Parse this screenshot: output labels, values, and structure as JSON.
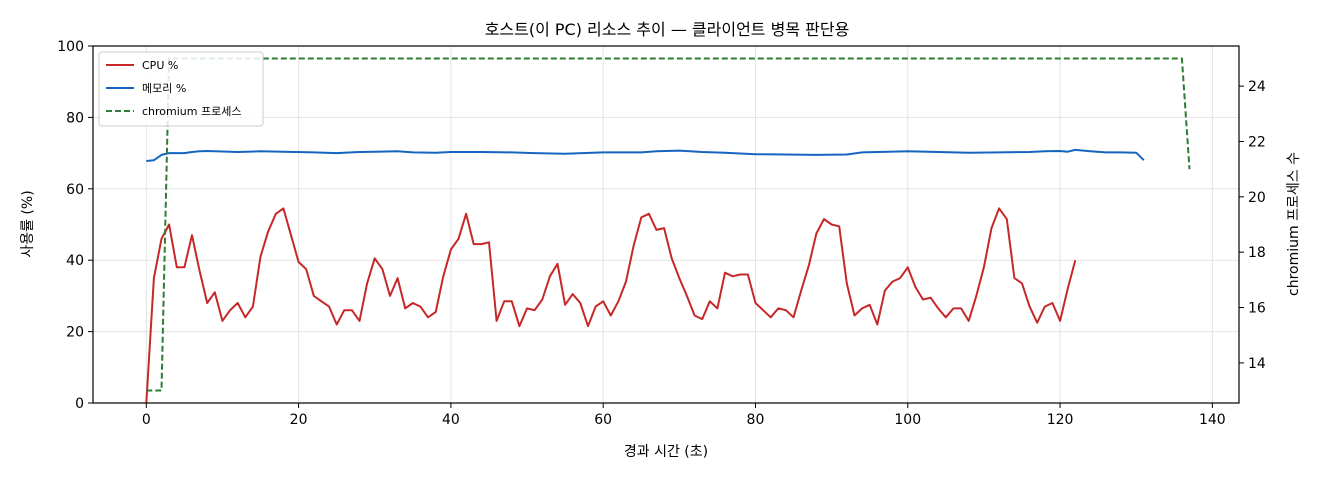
{
  "chart_data": {
    "type": "line",
    "title": "호스트(이 PC) 리소스 추이 — 클라이언트 병목 판단용",
    "xlabel": "경과 시간 (초)",
    "ylabel": "사용률 (%)",
    "y2label": "chromium 프로세스 수",
    "xlim": [
      -7,
      143.5
    ],
    "ylim": [
      0,
      100
    ],
    "y2lim": [
      12.55,
      25.45
    ],
    "xticks": [
      0,
      20,
      40,
      60,
      80,
      100,
      120,
      140
    ],
    "yticks": [
      0,
      20,
      40,
      60,
      80,
      100
    ],
    "y2ticks": [
      14,
      16,
      18,
      20,
      22,
      24
    ],
    "grid": true,
    "legend_position": "top-left",
    "legend": [
      "CPU %",
      "메모리 %",
      "chromium 프로세스"
    ],
    "series": [
      {
        "name": "CPU %",
        "axis": "left",
        "color": "#c62828",
        "style": "solid",
        "points": [
          [
            0,
            0
          ],
          [
            1,
            35
          ],
          [
            2,
            46
          ],
          [
            3,
            50
          ],
          [
            4,
            38
          ],
          [
            5,
            38
          ],
          [
            6,
            47
          ],
          [
            7,
            37
          ],
          [
            8,
            28
          ],
          [
            9,
            31
          ],
          [
            10,
            23
          ],
          [
            11,
            26
          ],
          [
            12,
            28
          ],
          [
            13,
            24
          ],
          [
            14,
            27
          ],
          [
            15,
            41
          ],
          [
            16,
            48
          ],
          [
            17,
            53
          ],
          [
            18,
            54.5
          ],
          [
            19,
            47
          ],
          [
            20,
            39.5
          ],
          [
            21,
            37.5
          ],
          [
            22,
            30
          ],
          [
            23,
            28.5
          ],
          [
            24,
            27
          ],
          [
            25,
            22
          ],
          [
            26,
            26
          ],
          [
            27,
            26
          ],
          [
            28,
            23
          ],
          [
            29,
            33.5
          ],
          [
            30,
            40.5
          ],
          [
            31,
            37.5
          ],
          [
            32,
            30
          ],
          [
            33,
            35
          ],
          [
            34,
            26.5
          ],
          [
            35,
            28
          ],
          [
            36,
            27
          ],
          [
            37,
            24
          ],
          [
            38,
            25.5
          ],
          [
            39,
            35.5
          ],
          [
            40,
            43
          ],
          [
            41,
            46
          ],
          [
            42,
            53
          ],
          [
            43,
            44.5
          ],
          [
            44,
            44.5
          ],
          [
            45,
            45
          ],
          [
            46,
            23
          ],
          [
            47,
            28.5
          ],
          [
            48,
            28.5
          ],
          [
            49,
            21.5
          ],
          [
            50,
            26.5
          ],
          [
            51,
            26
          ],
          [
            52,
            29
          ],
          [
            53,
            35.5
          ],
          [
            54,
            39
          ],
          [
            55,
            27.5
          ],
          [
            56,
            30.5
          ],
          [
            57,
            28
          ],
          [
            58,
            21.5
          ],
          [
            59,
            27
          ],
          [
            60,
            28.5
          ],
          [
            61,
            24.5
          ],
          [
            62,
            28.5
          ],
          [
            63,
            34
          ],
          [
            64,
            44
          ],
          [
            65,
            52
          ],
          [
            66,
            53
          ],
          [
            67,
            48.5
          ],
          [
            68,
            49
          ],
          [
            69,
            40.5
          ],
          [
            70,
            35
          ],
          [
            71,
            30
          ],
          [
            72,
            24.5
          ],
          [
            73,
            23.5
          ],
          [
            74,
            28.5
          ],
          [
            75,
            26.5
          ],
          [
            76,
            36.5
          ],
          [
            77,
            35.5
          ],
          [
            78,
            36
          ],
          [
            79,
            36
          ],
          [
            80,
            28
          ],
          [
            81,
            26
          ],
          [
            82,
            24
          ],
          [
            83,
            26.5
          ],
          [
            84,
            26
          ],
          [
            85,
            24
          ],
          [
            86,
            31.5
          ],
          [
            87,
            38.5
          ],
          [
            88,
            47.5
          ],
          [
            89,
            51.5
          ],
          [
            90,
            50
          ],
          [
            91,
            49.5
          ],
          [
            92,
            33.5
          ],
          [
            93,
            24.5
          ],
          [
            94,
            26.5
          ],
          [
            95,
            27.5
          ],
          [
            96,
            22
          ],
          [
            97,
            31.5
          ],
          [
            98,
            34
          ],
          [
            99,
            35
          ],
          [
            100,
            38
          ],
          [
            101,
            32.5
          ],
          [
            102,
            29
          ],
          [
            103,
            29.5
          ],
          [
            104,
            26.5
          ],
          [
            105,
            24
          ],
          [
            106,
            26.5
          ],
          [
            107,
            26.5
          ],
          [
            108,
            23
          ],
          [
            109,
            30
          ],
          [
            110,
            38
          ],
          [
            111,
            49
          ],
          [
            112,
            54.5
          ],
          [
            113,
            51.5
          ],
          [
            114,
            35
          ],
          [
            115,
            33.5
          ],
          [
            116,
            27
          ],
          [
            117,
            22.5
          ],
          [
            118,
            27
          ],
          [
            119,
            28
          ],
          [
            120,
            23
          ],
          [
            121,
            32
          ],
          [
            122,
            40
          ]
        ]
      },
      {
        "name": "메모리 %",
        "axis": "left",
        "color": "#1565c0",
        "style": "solid",
        "points": [
          [
            0,
            67.8
          ],
          [
            1,
            68
          ],
          [
            2,
            69.5
          ],
          [
            3,
            70
          ],
          [
            5,
            70
          ],
          [
            6,
            70.3
          ],
          [
            7,
            70.5
          ],
          [
            8,
            70.6
          ],
          [
            9,
            70.5
          ],
          [
            12,
            70.3
          ],
          [
            15,
            70.5
          ],
          [
            18,
            70.4
          ],
          [
            22,
            70.2
          ],
          [
            25,
            70
          ],
          [
            28,
            70.3
          ],
          [
            30,
            70.4
          ],
          [
            33,
            70.5
          ],
          [
            35,
            70.2
          ],
          [
            38,
            70.1
          ],
          [
            40,
            70.3
          ],
          [
            44,
            70.3
          ],
          [
            48,
            70.2
          ],
          [
            51,
            70
          ],
          [
            55,
            69.8
          ],
          [
            60,
            70.2
          ],
          [
            65,
            70.2
          ],
          [
            67,
            70.5
          ],
          [
            70,
            70.7
          ],
          [
            73,
            70.3
          ],
          [
            76,
            70.1
          ],
          [
            80,
            69.7
          ],
          [
            84,
            69.6
          ],
          [
            88,
            69.5
          ],
          [
            92,
            69.6
          ],
          [
            94,
            70.2
          ],
          [
            96,
            70.3
          ],
          [
            100,
            70.5
          ],
          [
            104,
            70.3
          ],
          [
            108,
            70.1
          ],
          [
            112,
            70.2
          ],
          [
            116,
            70.3
          ],
          [
            118,
            70.5
          ],
          [
            120,
            70.6
          ],
          [
            121,
            70.4
          ],
          [
            122,
            70.9
          ],
          [
            124,
            70.5
          ],
          [
            126,
            70.2
          ],
          [
            128,
            70.2
          ],
          [
            130,
            70.1
          ],
          [
            131,
            68
          ]
        ]
      },
      {
        "name": "chromium 프로세스",
        "axis": "right",
        "color": "#2e7d32",
        "style": "dashed",
        "points": [
          [
            0,
            13
          ],
          [
            2,
            13
          ],
          [
            3,
            25
          ],
          [
            136,
            25
          ],
          [
            137,
            21
          ]
        ]
      }
    ]
  }
}
